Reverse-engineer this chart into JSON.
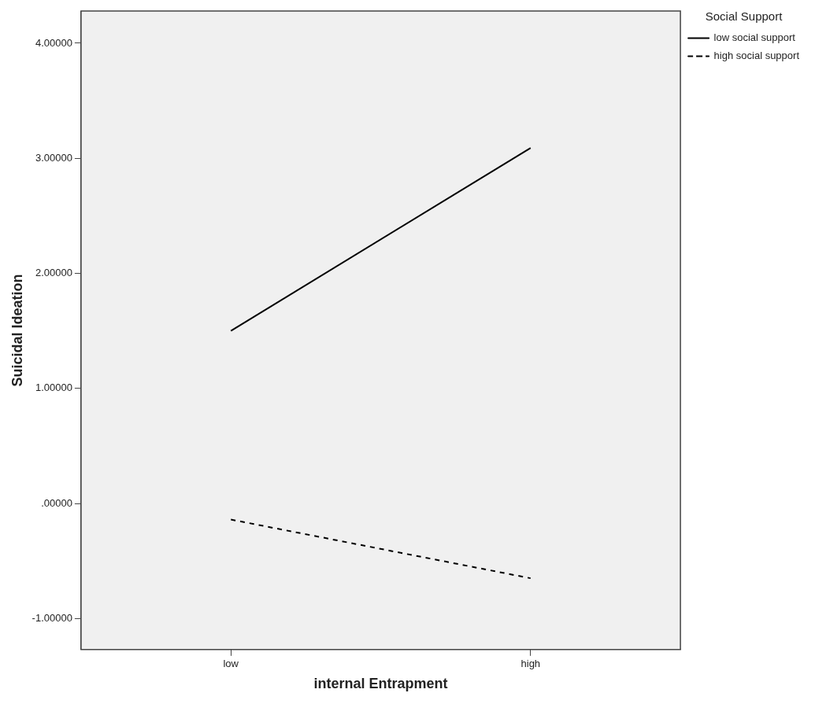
{
  "chart_data": {
    "type": "line",
    "xlabel": "internal Entrapment",
    "ylabel": "Suicidal Ideation",
    "legend_title": "Social Support",
    "legend": "top right",
    "grid": false,
    "marker": "none",
    "categories": [
      "low",
      "high"
    ],
    "series": [
      {
        "name": "low social support",
        "color": "#000000",
        "values": [
          1.5,
          3.09
        ],
        "line_style": "solid"
      },
      {
        "name": "high social support",
        "color": "#000000",
        "values": [
          -0.14,
          -0.65
        ],
        "line_style": "dashed"
      }
    ],
    "ylim": [
      -1.27,
      4.28
    ],
    "yticks": [
      {
        "value": -1,
        "label": "-1.00000"
      },
      {
        "value": 0,
        "label": ".00000"
      },
      {
        "value": 1,
        "label": "1.00000"
      },
      {
        "value": 2,
        "label": "2.00000"
      },
      {
        "value": 3,
        "label": "3.00000"
      },
      {
        "value": 4,
        "label": "4.00000"
      }
    ]
  }
}
